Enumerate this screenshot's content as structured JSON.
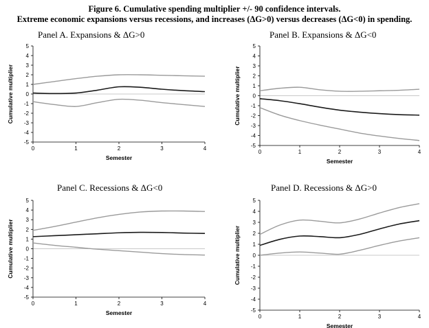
{
  "figure": {
    "title_line1": "Figure 6. Cumulative spending multiplier +/- 90 confidence intervals.",
    "title_line2": "Extreme economic expansions versus recessions, and increases (ΔG>0) versus decreases (ΔG<0) in spending."
  },
  "chart_data": [
    {
      "type": "line",
      "title": "Panel A. Expansions & ΔG>0",
      "xlabel": "Semester",
      "ylabel": "Cumulative multiplier",
      "x": [
        0,
        0.5,
        1,
        1.5,
        2,
        2.5,
        3,
        3.5,
        4
      ],
      "xlim": [
        0,
        4
      ],
      "ylim": [
        -5,
        5
      ],
      "xticks": [
        0,
        1,
        2,
        3,
        4
      ],
      "yticks": [
        5,
        4,
        3,
        2,
        1,
        0,
        -1,
        -2,
        -3,
        -4,
        -5
      ],
      "series": [
        {
          "values": [
            1.0,
            1.3,
            1.6,
            1.85,
            2.0,
            2.0,
            1.95,
            1.9,
            1.85
          ],
          "color": "#9a9a9a"
        },
        {
          "values": [
            0.1,
            0.05,
            0.1,
            0.4,
            0.75,
            0.7,
            0.5,
            0.35,
            0.25
          ],
          "color": "#1a1a1a"
        },
        {
          "values": [
            -0.8,
            -1.1,
            -1.3,
            -0.9,
            -0.55,
            -0.65,
            -0.9,
            -1.1,
            -1.3
          ],
          "color": "#9a9a9a"
        }
      ]
    },
    {
      "type": "line",
      "title": "Panel B. Expansions & ΔG<0",
      "xlabel": "Semester",
      "ylabel": "Cumulative multiplier",
      "x": [
        0,
        0.5,
        1,
        1.5,
        2,
        2.5,
        3,
        3.5,
        4
      ],
      "xlim": [
        0,
        4
      ],
      "ylim": [
        -5,
        5
      ],
      "xticks": [
        0,
        1,
        2,
        3,
        4
      ],
      "yticks": [
        5,
        4,
        3,
        2,
        1,
        0,
        -1,
        -2,
        -3,
        -4,
        -5
      ],
      "series": [
        {
          "values": [
            0.5,
            0.75,
            0.85,
            0.6,
            0.45,
            0.45,
            0.5,
            0.55,
            0.65
          ],
          "color": "#9a9a9a"
        },
        {
          "values": [
            -0.3,
            -0.5,
            -0.8,
            -1.15,
            -1.45,
            -1.65,
            -1.8,
            -1.9,
            -1.95
          ],
          "color": "#1a1a1a"
        },
        {
          "values": [
            -1.2,
            -1.95,
            -2.5,
            -2.95,
            -3.35,
            -3.75,
            -4.05,
            -4.3,
            -4.5
          ],
          "color": "#9a9a9a"
        }
      ]
    },
    {
      "type": "line",
      "title": "Panel C. Recessions & ΔG<0",
      "xlabel": "Semester",
      "ylabel": "Cumulative multiplier",
      "x": [
        0,
        0.5,
        1,
        1.5,
        2,
        2.5,
        3,
        3.5,
        4
      ],
      "xlim": [
        0,
        4
      ],
      "ylim": [
        -5,
        5
      ],
      "xticks": [
        0,
        1,
        2,
        3,
        4
      ],
      "yticks": [
        5,
        4,
        3,
        2,
        1,
        0,
        -1,
        -2,
        -3,
        -4,
        -5
      ],
      "series": [
        {
          "values": [
            1.9,
            2.3,
            2.75,
            3.2,
            3.55,
            3.8,
            3.9,
            3.9,
            3.85
          ],
          "color": "#9a9a9a"
        },
        {
          "values": [
            1.25,
            1.35,
            1.45,
            1.55,
            1.65,
            1.7,
            1.68,
            1.62,
            1.58
          ],
          "color": "#1a1a1a"
        },
        {
          "values": [
            0.6,
            0.35,
            0.15,
            -0.05,
            -0.2,
            -0.35,
            -0.5,
            -0.6,
            -0.65
          ],
          "color": "#9a9a9a"
        }
      ]
    },
    {
      "type": "line",
      "title": "Panel D. Recessions & ΔG>0",
      "xlabel": "Semester",
      "ylabel": "Cumulative multiplier",
      "x": [
        0,
        0.5,
        1,
        1.5,
        2,
        2.5,
        3,
        3.5,
        4
      ],
      "xlim": [
        0,
        4
      ],
      "ylim": [
        -5,
        5
      ],
      "xticks": [
        0,
        1,
        2,
        3,
        4
      ],
      "yticks": [
        5,
        4,
        3,
        2,
        1,
        0,
        -1,
        -2,
        -3,
        -4,
        -5
      ],
      "series": [
        {
          "values": [
            1.9,
            2.75,
            3.2,
            3.1,
            2.95,
            3.3,
            3.85,
            4.35,
            4.7
          ],
          "color": "#9a9a9a"
        },
        {
          "values": [
            0.9,
            1.45,
            1.75,
            1.7,
            1.6,
            1.9,
            2.4,
            2.85,
            3.15
          ],
          "color": "#1a1a1a"
        },
        {
          "values": [
            0.0,
            0.2,
            0.3,
            0.2,
            0.1,
            0.45,
            0.9,
            1.3,
            1.6
          ],
          "color": "#9a9a9a"
        }
      ]
    }
  ]
}
